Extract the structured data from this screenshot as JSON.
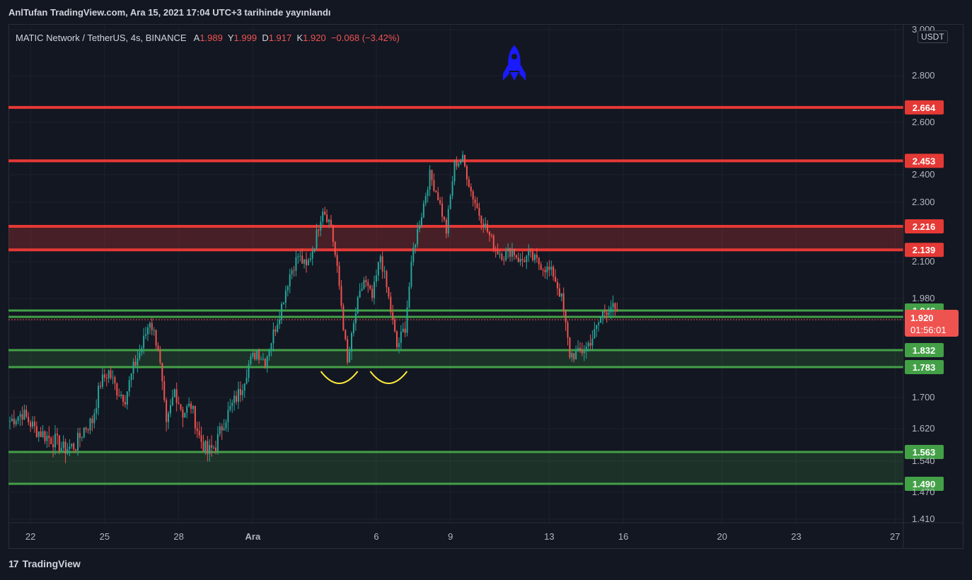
{
  "header": {
    "publish_line": "AnlTufan TradingView.com, Ara 15, 2021 17:04 UTC+3 tarihinde yayınlandı"
  },
  "legend": {
    "symbol_line": "MATIC Network / TetherUS, 4s, BINANCE",
    "open_label": "A",
    "open_value": "1.989",
    "high_label": "Y",
    "high_value": "1.999",
    "low_label": "D",
    "low_value": "1.917",
    "close_label": "K",
    "close_value": "1.920",
    "change": "−0.068 (−3.42%)"
  },
  "currency": "USDT",
  "footer": {
    "brand": "TradingView",
    "logo_mark": "17"
  },
  "colors": {
    "background": "#131722",
    "up": "#26a69a",
    "down": "#ef5350",
    "resistance": "#e53935",
    "support": "#43a047",
    "rocket": "#1a1aff",
    "annotation": "#ffeb3b"
  },
  "chart_data": {
    "type": "candlestick",
    "title": "MATIC Network / TetherUS, 4s, BINANCE",
    "ylim": [
      1.38,
      3.0
    ],
    "grid": true,
    "x_ticks": [
      {
        "label": "22",
        "t": 5
      },
      {
        "label": "25",
        "t": 23
      },
      {
        "label": "28",
        "t": 41
      },
      {
        "label": "Ara",
        "t": 59
      },
      {
        "label": "6",
        "t": 89
      },
      {
        "label": "9",
        "t": 107
      },
      {
        "label": "13",
        "t": 131
      },
      {
        "label": "16",
        "t": 149
      },
      {
        "label": "20",
        "t": 173
      },
      {
        "label": "23",
        "t": 191
      },
      {
        "label": "27",
        "t": 215
      }
    ],
    "y_ticks": [
      "3.000",
      "2.800",
      "2.600",
      "2.400",
      "2.300",
      "2.100",
      "1.980",
      "1.700",
      "1.620",
      "1.540",
      "1.470",
      "1.410"
    ],
    "horizontal_levels": [
      {
        "value": "2.664",
        "kind": "resistance"
      },
      {
        "value": "2.453",
        "kind": "resistance"
      },
      {
        "value": "2.216",
        "kind": "resistance"
      },
      {
        "value": "2.139",
        "kind": "resistance"
      },
      {
        "value": "1.946",
        "kind": "support"
      },
      {
        "value": "1.928",
        "kind": "support"
      },
      {
        "value": "1.832",
        "kind": "support"
      },
      {
        "value": "1.783",
        "kind": "support"
      },
      {
        "value": "1.563",
        "kind": "support"
      },
      {
        "value": "1.490",
        "kind": "support"
      }
    ],
    "zones": [
      {
        "from": 2.139,
        "to": 2.216,
        "kind": "resistance"
      },
      {
        "from": 1.783,
        "to": 1.832,
        "kind": "support"
      },
      {
        "from": 1.49,
        "to": 1.563,
        "kind": "support"
      }
    ],
    "current_price": {
      "value": "1.920",
      "countdown": "01:56:01"
    },
    "annotations": [
      {
        "type": "arc",
        "t": 80
      },
      {
        "type": "arc",
        "t": 92
      },
      {
        "type": "rocket",
        "t": 120
      }
    ],
    "close_path": [
      [
        0,
        1.64
      ],
      [
        3,
        1.66
      ],
      [
        6,
        1.62
      ],
      [
        9,
        1.6
      ],
      [
        11,
        1.59
      ],
      [
        13,
        1.57
      ],
      [
        16,
        1.58
      ],
      [
        18,
        1.62
      ],
      [
        20,
        1.64
      ],
      [
        22,
        1.74
      ],
      [
        24,
        1.77
      ],
      [
        26,
        1.72
      ],
      [
        28,
        1.7
      ],
      [
        30,
        1.78
      ],
      [
        32,
        1.84
      ],
      [
        34,
        1.92
      ],
      [
        36,
        1.84
      ],
      [
        38,
        1.62
      ],
      [
        40,
        1.72
      ],
      [
        42,
        1.66
      ],
      [
        44,
        1.68
      ],
      [
        46,
        1.6
      ],
      [
        48,
        1.56
      ],
      [
        50,
        1.58
      ],
      [
        52,
        1.64
      ],
      [
        54,
        1.68
      ],
      [
        56,
        1.72
      ],
      [
        58,
        1.79
      ],
      [
        60,
        1.83
      ],
      [
        62,
        1.8
      ],
      [
        64,
        1.88
      ],
      [
        66,
        1.96
      ],
      [
        68,
        2.06
      ],
      [
        70,
        2.12
      ],
      [
        72,
        2.08
      ],
      [
        74,
        2.16
      ],
      [
        76,
        2.28
      ],
      [
        78,
        2.22
      ],
      [
        80,
        2.02
      ],
      [
        82,
        1.79
      ],
      [
        84,
        1.94
      ],
      [
        86,
        2.04
      ],
      [
        88,
        1.98
      ],
      [
        90,
        2.12
      ],
      [
        92,
        1.98
      ],
      [
        94,
        1.84
      ],
      [
        96,
        1.9
      ],
      [
        98,
        2.14
      ],
      [
        100,
        2.26
      ],
      [
        102,
        2.4
      ],
      [
        104,
        2.32
      ],
      [
        106,
        2.2
      ],
      [
        108,
        2.44
      ],
      [
        110,
        2.46
      ],
      [
        112,
        2.34
      ],
      [
        114,
        2.26
      ],
      [
        116,
        2.2
      ],
      [
        118,
        2.14
      ],
      [
        120,
        2.12
      ],
      [
        122,
        2.14
      ],
      [
        124,
        2.1
      ],
      [
        126,
        2.12
      ],
      [
        128,
        2.1
      ],
      [
        130,
        2.08
      ],
      [
        132,
        2.06
      ],
      [
        134,
        1.98
      ],
      [
        136,
        1.82
      ],
      [
        138,
        1.82
      ],
      [
        140,
        1.84
      ],
      [
        142,
        1.88
      ],
      [
        144,
        1.94
      ],
      [
        146,
        1.96
      ],
      [
        148,
        1.92
      ]
    ]
  }
}
